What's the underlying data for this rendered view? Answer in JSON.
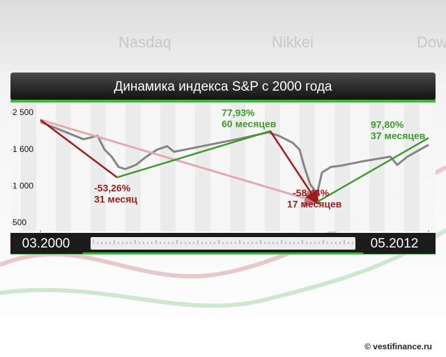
{
  "chart_data": {
    "type": "line",
    "title": "Динамика индекса S&P с 2000 года",
    "background_labels": [
      "Nasdaq",
      "Nikkei",
      "Dow"
    ],
    "source": "© vestifinance.ru",
    "xlim": [
      2000.17,
      2012.33
    ],
    "xticks": [
      {
        "value": 2000.17,
        "label": "03.2000"
      },
      {
        "value": 2012.33,
        "label": "05.2012"
      }
    ],
    "ylim": [
      500,
      2500
    ],
    "yticks": [
      {
        "value": 2500,
        "label": "2 500"
      },
      {
        "value": 1600,
        "label": "1 600"
      },
      {
        "value": 1000,
        "label": "1 000"
      },
      500
    ],
    "series": [
      {
        "color": "#858585",
        "x": [
          2000.17,
          2000.98,
          2001.52,
          2001.96,
          2002.18,
          2002.4,
          2002.62,
          2002.83,
          2003.16,
          2003.49,
          2003.82,
          2004.14,
          2004.36,
          2004.69,
          2005.45,
          2006.33,
          2007.31,
          2007.64,
          2008.07,
          2008.29,
          2008.44,
          2008.62,
          2008.84,
          2008.99,
          2009.27,
          2009.6,
          2010.25,
          2011.13,
          2011.35,
          2011.67,
          2012.33
        ],
        "values": [
          2279,
          2025,
          1855,
          1940,
          1600,
          1487,
          1317,
          1283,
          1351,
          1487,
          1600,
          1685,
          1566,
          1600,
          1719,
          1855,
          2025,
          1940,
          1770,
          1600,
          1317,
          1034,
          904,
          1226,
          1317,
          1340,
          1408,
          1487,
          1351,
          1487,
          1719
        ]
      },
      {
        "color": "#e2aab0",
        "x": [
          2000.17,
          2008.84
        ],
        "values": [
          2330,
          789
        ]
      },
      {
        "color": "#9b1c1c",
        "x": [
          2000.17,
          2002.57
        ],
        "values": [
          2330,
          1147
        ]
      },
      {
        "color": "#3e9a2c",
        "x": [
          2002.57,
          2007.37
        ],
        "values": [
          1147,
          2058
        ]
      },
      {
        "color": "#9b1c1c",
        "x": [
          2007.37,
          2008.84
        ],
        "values": [
          2058,
          789
        ]
      },
      {
        "color": "#3e9a2c",
        "x": [
          2008.84,
          2012.33
        ],
        "values": [
          789,
          1889
        ]
      }
    ],
    "annotations": [
      {
        "text": "-53,26%",
        "subtext": "31 месяц",
        "color": "#9b1c1c"
      },
      {
        "text": "77,93%",
        "subtext": "60 месяцев",
        "color": "#3e9a2c"
      },
      {
        "text": "-58,44%",
        "subtext": "17 месяцев",
        "color": "#9b1c1c"
      },
      {
        "text": "97,80%",
        "subtext": "37 месяцев",
        "color": "#3e9a2c"
      }
    ]
  }
}
